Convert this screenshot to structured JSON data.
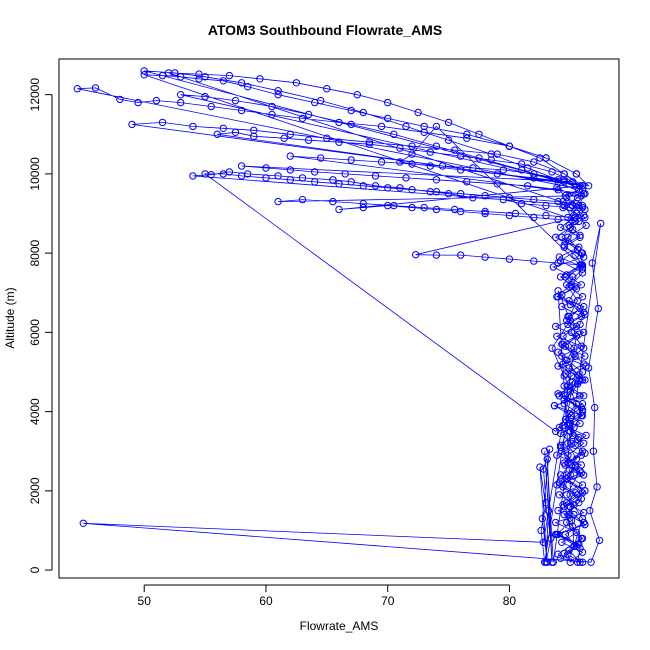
{
  "chart_data": {
    "type": "scatter",
    "title": "ATOM3 Southbound Flowrate_AMS",
    "xlabel": "Flowrate_AMS",
    "ylabel": "Altitude (m)",
    "xlim": [
      43,
      89
    ],
    "ylim": [
      -200,
      12900
    ],
    "xticks": [
      50,
      60,
      70,
      80
    ],
    "yticks": [
      0,
      2000,
      4000,
      6000,
      8000,
      10000,
      12000
    ],
    "grid": false,
    "legend": "none",
    "plot_style": "points connected by lines",
    "series": [
      {
        "color": "#0000ff",
        "x": [
          86.0,
          84.5,
          85.6,
          83.8,
          86.2,
          84.9,
          85.3,
          84.1,
          86.0,
          84.7,
          85.9,
          83.9,
          85.4,
          86.3,
          84.4,
          85.1,
          83.7,
          86.1,
          84.8,
          85.7,
          84.0,
          86.2,
          84.6,
          85.5,
          83.8,
          85.9,
          84.3,
          86.0,
          84.9,
          85.2,
          83.6,
          86.1,
          84.5,
          85.8,
          84.2,
          85.3,
          86.0,
          84.7,
          83.9,
          85.6,
          84.4,
          86.2,
          85.0,
          83.8,
          85.7,
          84.1,
          86.0,
          84.6,
          85.4,
          84.0,
          86.1,
          84.8,
          85.5,
          83.9,
          85.9,
          84.3,
          86.3,
          85.1,
          84.5,
          85.8,
          83.7,
          86.0,
          84.9,
          85.2,
          84.2,
          85.9,
          84.6,
          86.1,
          83.9,
          85.6,
          84.4,
          85.3,
          86.2,
          84.0,
          85.7,
          84.8,
          85.0,
          86.0,
          84.3,
          85.5,
          83.8,
          86.1,
          84.7,
          85.4,
          84.1,
          85.9,
          84.5,
          86.2,
          85.1,
          84.2,
          85.8,
          84.9,
          86.0,
          84.0,
          85.6,
          84.6,
          86.1,
          85.3,
          84.4,
          85.7,
          84.8,
          86.2,
          85.0,
          84.3,
          85.9,
          84.7,
          86.0,
          85.4,
          84.5,
          85.8,
          84.9,
          86.1,
          85.2,
          84.6,
          85.7,
          84.4,
          85.5,
          86.3,
          84.8,
          85.6,
          84.2,
          86.0,
          85.1,
          83.9,
          85.8,
          84.7,
          86.1,
          84.3,
          85.4,
          84.9,
          86.2,
          85.0,
          84.5,
          85.9,
          84.1,
          85.6,
          86.0,
          84.8,
          85.3,
          84.4,
          85.9,
          84.0,
          86.1,
          84.6,
          85.5,
          84.2,
          85.8,
          84.9,
          86.0,
          85.2,
          84.5,
          85.7,
          86.2,
          84.3,
          85.4,
          84.8,
          86.1,
          85.0,
          84.6,
          85.9,
          84.1,
          85.6,
          86.0,
          84.7,
          85.3,
          84.4,
          85.8,
          86.1,
          84.9,
          85.5,
          84.2,
          85.9,
          86.0,
          84.6,
          85.2,
          84.8,
          85.7,
          86.2,
          84.5,
          85.4,
          84.3,
          85.9,
          86.0,
          84.7,
          85.6,
          84.9,
          85.1,
          86.1,
          84.4,
          85.8,
          84.6,
          86.0,
          85.3,
          84.8,
          85.5,
          84.2,
          86.2,
          85.0,
          84.7,
          85.9,
          84.0,
          85.6,
          85.8,
          83.9,
          85.1,
          84.5,
          86.0,
          84.7,
          85.4,
          84.3,
          85.7,
          84.9,
          86.0,
          84.1,
          85.2,
          82.9,
          82.6,
          83.0,
          82.8,
          83.3,
          82.7,
          83.1,
          82.5,
          83.4,
          83.0,
          83.2,
          82.9,
          83.5,
          83.1,
          83.6,
          87.5,
          86.8,
          87.3,
          86.5,
          87.0,
          86.9,
          87.2,
          86.6,
          87.4,
          86.7,
          45.0,
          82.8,
          85.5,
          84.0,
          86.0,
          84.5,
          85.0,
          84.2,
          85.8,
          84.7,
          86.0,
          85.3,
          84.0,
          85.0,
          83.5,
          84.5,
          85.5,
          83.8,
          55.0,
          56.5,
          58.0,
          60.0,
          62.0,
          64.0,
          66.0,
          68.0,
          70.0,
          72.0,
          74.0,
          76.0,
          78.0,
          80.0,
          82.0,
          84.0,
          85.5,
          86.0,
          54.0,
          55.5,
          57.0,
          58.5,
          61.0,
          63.0,
          65.5,
          67.0,
          69.0,
          71.0,
          73.5,
          75.0,
          77.0,
          79.5,
          81.0,
          83.0,
          85.0,
          86.2,
          52.0,
          54.5,
          57.0,
          59.5,
          62.5,
          65.0,
          67.5,
          70.0,
          72.5,
          75.0,
          77.5,
          80.0,
          82.5,
          84.5,
          85.8,
          50.0,
          52.5,
          55.0,
          58.0,
          61.0,
          64.5,
          68.0,
          71.5,
          75.0,
          78.5,
          81.5,
          84.0,
          86.0,
          44.5,
          46.0,
          48.0,
          49.5,
          51.0,
          53.0,
          55.5,
          58.0,
          60.5,
          63.0,
          66.0,
          69.5,
          73.0,
          76.5,
          80.0,
          83.0,
          85.5,
          86.5,
          49.0,
          51.5,
          54.0,
          56.5,
          59.0,
          62.0,
          65.0,
          68.5,
          72.0,
          75.5,
          79.0,
          82.0,
          84.5,
          86.0,
          56.0,
          57.5,
          59.0,
          61.5,
          63.5,
          66.0,
          68.5,
          71.0,
          73.5,
          76.0,
          78.5,
          81.0,
          83.5,
          85.2,
          58.0,
          60.0,
          62.0,
          64.0,
          66.5,
          69.0,
          71.5,
          74.0,
          76.5,
          79.0,
          81.5,
          84.0,
          85.9,
          61.0,
          63.0,
          65.5,
          68.0,
          70.5,
          73.0,
          75.5,
          78.0,
          80.5,
          83.0,
          85.4,
          72.3,
          74.0,
          76.0,
          78.0,
          80.0,
          82.0,
          84.0,
          85.8,
          74.0,
          72.0,
          71.0,
          73.5,
          76.0,
          79.0,
          82.0,
          84.5,
          86.0,
          53.0,
          55.0,
          57.5,
          60.5,
          63.5,
          67.0,
          70.5,
          74.0,
          77.5,
          81.0,
          84.0,
          86.1,
          62.0,
          64.5,
          67.0,
          69.5,
          72.0,
          74.5,
          77.0,
          79.5,
          82.0,
          84.5,
          86.0,
          66.0,
          68.0,
          70.0,
          72.0,
          74.0,
          76.0,
          78.0,
          80.0,
          82.0,
          84.0,
          85.7,
          50.0,
          51.5,
          53.0,
          54.5,
          56.5,
          58.5,
          61.0,
          64.0,
          67.0,
          70.0,
          73.0,
          76.5,
          80.0,
          83.0,
          85.5
        ],
        "y": [
          200,
          420,
          650,
          900,
          1150,
          1400,
          1650,
          1900,
          2150,
          2400,
          2650,
          2900,
          3150,
          3400,
          3650,
          3900,
          4150,
          4400,
          4650,
          4900,
          5150,
          5400,
          5650,
          5900,
          6150,
          6400,
          6650,
          6900,
          7150,
          7400,
          7650,
          7900,
          8150,
          8400,
          8650,
          8900,
          9150,
          9400,
          9650,
          9400,
          9150,
          8900,
          8650,
          8400,
          8150,
          7900,
          7650,
          7400,
          7150,
          6900,
          6650,
          6400,
          6150,
          5900,
          5650,
          5400,
          5150,
          4900,
          4650,
          4400,
          4150,
          3900,
          3650,
          3400,
          3150,
          2900,
          2650,
          2400,
          2150,
          1900,
          1650,
          1400,
          1150,
          900,
          650,
          400,
          200,
          450,
          700,
          950,
          1200,
          1450,
          1700,
          1950,
          2200,
          2450,
          2700,
          2950,
          3200,
          3450,
          3700,
          3950,
          4200,
          4450,
          4700,
          4950,
          5200,
          5450,
          5700,
          5950,
          6200,
          6450,
          6700,
          6950,
          7200,
          7450,
          7700,
          7950,
          8200,
          8450,
          8700,
          8950,
          9200,
          9450,
          9600,
          9300,
          9000,
          8700,
          8400,
          8100,
          7800,
          7500,
          7200,
          6900,
          6600,
          6300,
          6000,
          5700,
          5400,
          5100,
          4800,
          4500,
          4200,
          3900,
          3600,
          3300,
          3000,
          2700,
          2400,
          2100,
          1800,
          1500,
          1200,
          900,
          600,
          300,
          200,
          500,
          800,
          1100,
          1400,
          1700,
          2000,
          2300,
          2600,
          2900,
          3200,
          3500,
          3800,
          4100,
          4400,
          4700,
          5000,
          5300,
          5600,
          5900,
          6200,
          6500,
          6800,
          7100,
          7400,
          7700,
          8000,
          8300,
          8600,
          8900,
          9200,
          9500,
          9200,
          8800,
          8400,
          8000,
          7600,
          7200,
          6800,
          6400,
          6000,
          5600,
          5200,
          4800,
          4400,
          4000,
          3600,
          3200,
          2800,
          2400,
          2000,
          1600,
          1200,
          800,
          400,
          200,
          550,
          900,
          1250,
          1600,
          1950,
          2300,
          2650,
          3000,
          3350,
          3700,
          4050,
          4400,
          4750,
          200,
          1000,
          1700,
          2550,
          3050,
          1300,
          200,
          2600,
          800,
          200,
          1500,
          3000,
          200,
          2800,
          200,
          8750,
          7750,
          6600,
          5100,
          4100,
          3000,
          2100,
          1500,
          750,
          200,
          1180,
          700,
          5900,
          5500,
          4800,
          4300,
          3700,
          3100,
          2500,
          1900,
          1300,
          600,
          7050,
          6300,
          5600,
          4900,
          4200,
          3500,
          10000,
          10000,
          9950,
          9900,
          9850,
          9800,
          9750,
          9700,
          9650,
          9600,
          9550,
          9500,
          9450,
          9400,
          9350,
          9300,
          9250,
          9200,
          9950,
          9980,
          10050,
          10000,
          9950,
          9900,
          9850,
          9800,
          9700,
          9650,
          9550,
          9500,
          9400,
          9350,
          9250,
          9200,
          9150,
          9100,
          12550,
          12520,
          12480,
          12400,
          12300,
          12150,
          12000,
          11800,
          11550,
          11300,
          11000,
          10700,
          10400,
          10000,
          9700,
          12600,
          12550,
          12450,
          12300,
          12100,
          11850,
          11550,
          11200,
          10850,
          10500,
          10150,
          9850,
          9600,
          12150,
          12170,
          11880,
          11800,
          11850,
          11800,
          11700,
          11600,
          11500,
          11400,
          11300,
          11200,
          11050,
          10900,
          10700,
          10400,
          10000,
          9700,
          11250,
          11300,
          11200,
          11150,
          11100,
          11000,
          10900,
          10800,
          10700,
          10600,
          10500,
          10300,
          10000,
          9700,
          11000,
          11050,
          10950,
          10900,
          10850,
          10800,
          10750,
          10650,
          10550,
          10450,
          10350,
          10250,
          10050,
          9800,
          10200,
          10150,
          10100,
          10050,
          10000,
          9950,
          9900,
          9850,
          9800,
          9750,
          9700,
          9600,
          9450,
          9300,
          9350,
          9300,
          9250,
          9200,
          9150,
          9100,
          9050,
          9000,
          8950,
          8900,
          7960,
          7950,
          7950,
          7900,
          7850,
          7800,
          7750,
          7700,
          11200,
          10500,
          10300,
          10200,
          10100,
          10000,
          9900,
          9800,
          9700,
          12000,
          11950,
          11850,
          11700,
          11500,
          11250,
          11000,
          10700,
          10400,
          10100,
          9800,
          9500,
          10450,
          10400,
          10350,
          10300,
          10250,
          10200,
          10150,
          10100,
          10000,
          9850,
          9700,
          9100,
          9150,
          9200,
          9150,
          9100,
          9050,
          9000,
          8950,
          8900,
          8850,
          8800,
          12500,
          12480,
          12450,
          12400,
          12350,
          12200,
          12000,
          11800,
          11600,
          11400,
          11200,
          11000,
          10700,
          10400,
          10000
        ]
      }
    ]
  }
}
